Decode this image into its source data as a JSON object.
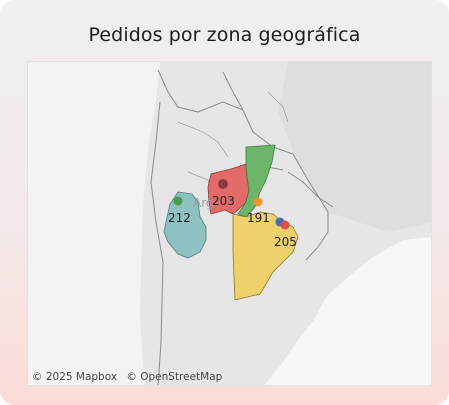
{
  "title": "Pedidos por zona geográfica",
  "map": {
    "country_label": "Argentina",
    "country_label_visible": "Arg",
    "regions": [
      {
        "name": "region-central-north",
        "value": 203,
        "label": "203",
        "color": "#e46a6a",
        "point_color": "#8b3a3a"
      },
      {
        "name": "region-northeast",
        "value": 191,
        "label": "191",
        "color": "#6db568",
        "point_color": "#f2922b"
      },
      {
        "name": "region-cuyo",
        "value": 212,
        "label": "212",
        "color": "#8ec1c1",
        "point_color": "#4e9a45"
      },
      {
        "name": "region-buenos-aires",
        "value": 205,
        "label": "205",
        "color": "#efd06a",
        "point_color": "#e34b4b"
      }
    ],
    "extra_point_color": "#3d6fb3",
    "land_color": "#e4e4e4",
    "water_color": "#ffffff",
    "border_color": "#6e6e6e"
  },
  "attribution": {
    "mapbox": "© 2025 Mapbox",
    "osm": "© OpenStreetMap"
  }
}
